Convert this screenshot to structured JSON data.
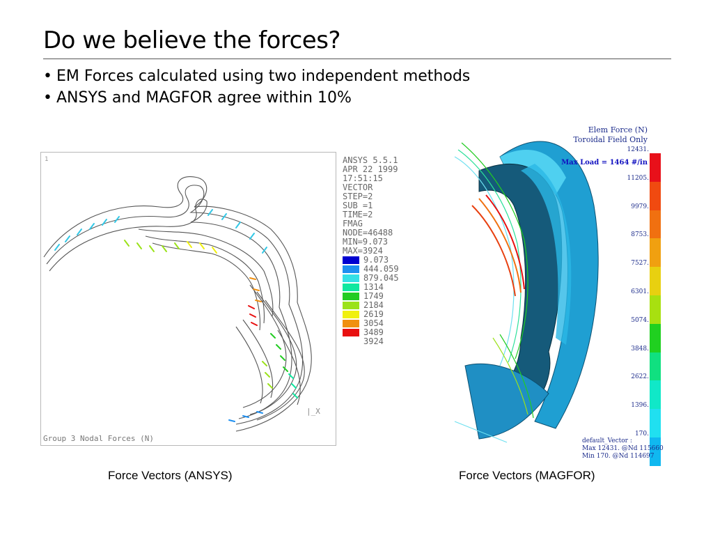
{
  "slide": {
    "title": "Do we believe the forces?",
    "bullets": [
      "EM Forces calculated using two independent methods",
      "ANSYS and MAGFOR agree within 10%"
    ]
  },
  "ansys": {
    "corner_label": "1",
    "header": [
      "ANSYS 5.5.1",
      "APR 22 1999",
      "17:51:15",
      "VECTOR",
      "STEP=2",
      "SUB =1",
      "TIME=2",
      "FMAG",
      "NODE=46488",
      "MIN=9.073",
      "MAX=3924"
    ],
    "legend": [
      {
        "color": "#0000d0",
        "value": "9.073"
      },
      {
        "color": "#1e8ff0",
        "value": "444.059"
      },
      {
        "color": "#34e0e6",
        "value": "879.045"
      },
      {
        "color": "#10e8a0",
        "value": "1314"
      },
      {
        "color": "#22cc22",
        "value": "1749"
      },
      {
        "color": "#9be21a",
        "value": "2184"
      },
      {
        "color": "#f0f010",
        "value": "2619"
      },
      {
        "color": "#f09010",
        "value": "3054"
      },
      {
        "color": "#e81010",
        "value": "3489"
      },
      {
        "color": "",
        "value": "3924"
      }
    ],
    "axis_label": "X",
    "footer": "Group 3 Nodal Forces (N)",
    "caption": "Force Vectors (ANSYS)"
  },
  "magfor": {
    "title_line1": "Elem Force (N)",
    "title_line2": "Toroidal Field Only",
    "max_load": "Max Load = 1464 #/in",
    "ticks": [
      "12431.",
      "11205.",
      "9979.",
      "8753.",
      "7527.",
      "6301.",
      "5074.",
      "3848.",
      "2622.",
      "1396.",
      "170."
    ],
    "bar_colors": [
      "#e8101a",
      "#f04a10",
      "#f07010",
      "#f0a010",
      "#e8d010",
      "#a8e010",
      "#20d020",
      "#10e080",
      "#10e8c8",
      "#20e0f0",
      "#10b8f0"
    ],
    "footer": [
      "default_Vector :",
      "Max 12431. @Nd 115660",
      "Min 170. @Nd 114697"
    ],
    "caption": "Force Vectors (MAGFOR)"
  }
}
